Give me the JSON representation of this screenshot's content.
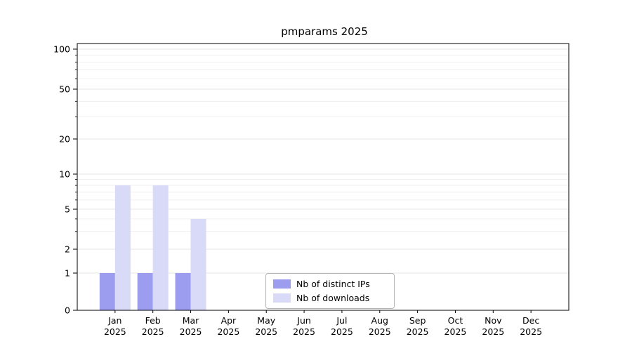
{
  "chart_data": {
    "type": "bar",
    "title": "pmparams 2025",
    "categories": [
      "Jan",
      "Feb",
      "Mar",
      "Apr",
      "May",
      "Jun",
      "Jul",
      "Aug",
      "Sep",
      "Oct",
      "Nov",
      "Dec"
    ],
    "category_year": "2025",
    "series": [
      {
        "name": "Nb of distinct IPs",
        "color": "#9d9df0",
        "values": [
          1,
          1,
          1,
          0,
          0,
          0,
          0,
          0,
          0,
          0,
          0,
          0
        ]
      },
      {
        "name": "Nb of downloads",
        "color": "#d9d9f8",
        "values": [
          8,
          8,
          4,
          0,
          0,
          0,
          0,
          0,
          0,
          0,
          0,
          0
        ]
      }
    ],
    "y_axis": {
      "scale": "symlog",
      "major_ticks": [
        0,
        1,
        2,
        5,
        10,
        20,
        50,
        100
      ],
      "minor_ticks": [
        3,
        4,
        6,
        7,
        8,
        9,
        30,
        40,
        60,
        70,
        80,
        90
      ],
      "range": [
        0,
        100
      ]
    },
    "x_axis": {
      "label": ""
    },
    "legend": {
      "position": "lower center"
    },
    "grid": true,
    "colors": {
      "grid_major": "#dedede",
      "grid_minor": "#ececec",
      "axis": "#000000",
      "background": "#ffffff"
    }
  }
}
